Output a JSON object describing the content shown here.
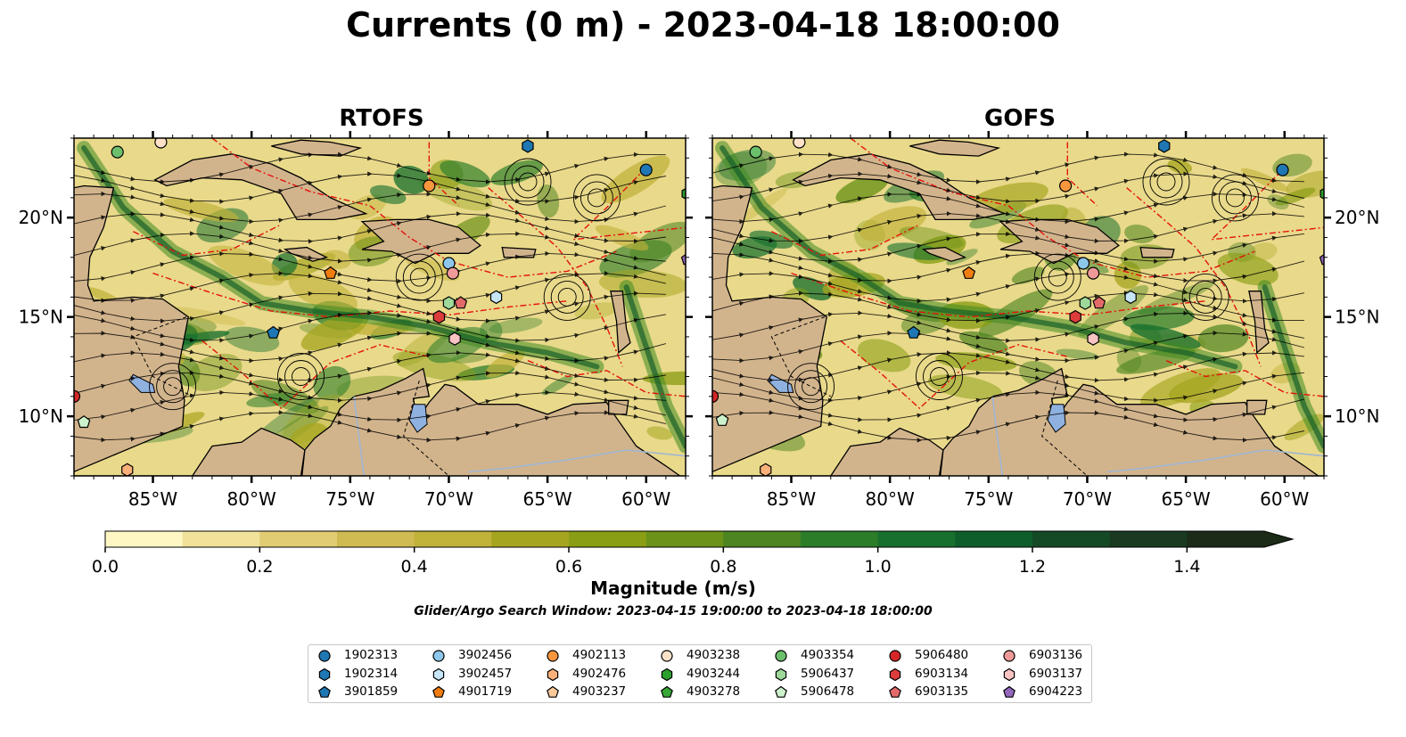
{
  "figure": {
    "title": "Currents (0 m) - 2023-04-18 18:00:00",
    "search_window": "Glider/Argo Search Window: 2023-04-15 19:00:00 to 2023-04-18 18:00:00"
  },
  "panels": [
    {
      "id": "rtofs",
      "title": "RTOFS"
    },
    {
      "id": "gofs",
      "title": "GOFS"
    }
  ],
  "axes": {
    "lon_range": [
      -89,
      -58
    ],
    "lat_range": [
      7,
      24
    ],
    "x_ticks": [
      {
        "lon": -85,
        "label": "85°W"
      },
      {
        "lon": -80,
        "label": "80°W"
      },
      {
        "lon": -75,
        "label": "75°W"
      },
      {
        "lon": -70,
        "label": "70°W"
      },
      {
        "lon": -65,
        "label": "65°W"
      },
      {
        "lon": -60,
        "label": "60°W"
      }
    ],
    "y_ticks": [
      {
        "lat": 10,
        "label": "10°N"
      },
      {
        "lat": 15,
        "label": "15°N"
      },
      {
        "lat": 20,
        "label": "20°N"
      }
    ]
  },
  "colors": {
    "land": "#d2b48c",
    "lakes": "#8fb1e0",
    "rivers": "#9fb6d4",
    "eez_lines": "#e4120f",
    "streamlines": "#000000"
  },
  "colorbar": {
    "label": "Magnitude (m/s)",
    "vmin": 0.0,
    "vmax": 1.5,
    "extend": "max",
    "ticks": [
      {
        "value": 0.0,
        "label": "0.0"
      },
      {
        "value": 0.2,
        "label": "0.2"
      },
      {
        "value": 0.4,
        "label": "0.4"
      },
      {
        "value": 0.6,
        "label": "0.6"
      },
      {
        "value": 0.8,
        "label": "0.8"
      },
      {
        "value": 1.0,
        "label": "1.0"
      },
      {
        "value": 1.2,
        "label": "1.2"
      },
      {
        "value": 1.4,
        "label": "1.4"
      }
    ],
    "levels": [
      "#fef7c3",
      "#f1e29a",
      "#e1cc73",
      "#d0bb52",
      "#c1b23a",
      "#a6a520",
      "#8a9e15",
      "#6c9219",
      "#4d8521",
      "#2b7d2a",
      "#17702e",
      "#0e5e2b",
      "#154a26",
      "#193a20",
      "#1b2b17"
    ]
  },
  "legend": {
    "items": [
      {
        "id": "1902313",
        "color": "#1f77b4",
        "marker": "circle"
      },
      {
        "id": "1902314",
        "color": "#1f77b4",
        "marker": "hexagon"
      },
      {
        "id": "3901859",
        "color": "#1f77b4",
        "marker": "pentagon"
      },
      {
        "id": "3902456",
        "color": "#8ec7ec",
        "marker": "circle"
      },
      {
        "id": "3902457",
        "color": "#c6e6f7",
        "marker": "hexagon"
      },
      {
        "id": "4901719",
        "color": "#f07d0f",
        "marker": "pentagon"
      },
      {
        "id": "4902113",
        "color": "#f8963e",
        "marker": "circle"
      },
      {
        "id": "4902476",
        "color": "#fbb07a",
        "marker": "hexagon"
      },
      {
        "id": "4903237",
        "color": "#fdc99a",
        "marker": "pentagon"
      },
      {
        "id": "4903238",
        "color": "#fde2c8",
        "marker": "circle"
      },
      {
        "id": "4903244",
        "color": "#2ca02c",
        "marker": "hexagon"
      },
      {
        "id": "4903278",
        "color": "#38a838",
        "marker": "pentagon"
      },
      {
        "id": "4903354",
        "color": "#6cc06c",
        "marker": "circle"
      },
      {
        "id": "5906437",
        "color": "#9ed99a",
        "marker": "hexagon"
      },
      {
        "id": "5906478",
        "color": "#ccf2cc",
        "marker": "pentagon"
      },
      {
        "id": "5906480",
        "color": "#d62728",
        "marker": "circle"
      },
      {
        "id": "6903134",
        "color": "#dd3c3c",
        "marker": "hexagon"
      },
      {
        "id": "6903135",
        "color": "#e46a6a",
        "marker": "pentagon"
      },
      {
        "id": "6903136",
        "color": "#ef9a9a",
        "marker": "circle"
      },
      {
        "id": "6903137",
        "color": "#f7c3c3",
        "marker": "hexagon"
      },
      {
        "id": "6904223",
        "color": "#9467bd",
        "marker": "pentagon"
      }
    ]
  },
  "floats": {
    "rtofs": [
      {
        "id": "1902313",
        "lon": -60.0,
        "lat": 22.4
      },
      {
        "id": "1902314",
        "lon": -66.0,
        "lat": 23.6
      },
      {
        "id": "3901859",
        "lon": -78.9,
        "lat": 14.2
      },
      {
        "id": "3902456",
        "lon": -70.0,
        "lat": 17.7
      },
      {
        "id": "3902457",
        "lon": -67.6,
        "lat": 16.0
      },
      {
        "id": "4901719",
        "lon": -76.0,
        "lat": 17.2
      },
      {
        "id": "4902113",
        "lon": -71.0,
        "lat": 21.6
      },
      {
        "id": "4902476",
        "lon": -86.3,
        "lat": 7.3
      },
      {
        "id": "4903238",
        "lon": -84.6,
        "lat": 23.8
      },
      {
        "id": "4903244",
        "lon": -57.9,
        "lat": 21.2
      },
      {
        "id": "4903354",
        "lon": -86.8,
        "lat": 23.3
      },
      {
        "id": "5906437",
        "lon": -70.0,
        "lat": 15.7
      },
      {
        "id": "5906478",
        "lon": -88.5,
        "lat": 9.7
      },
      {
        "id": "5906480",
        "lon": -89.0,
        "lat": 11.0
      },
      {
        "id": "6903134",
        "lon": -70.5,
        "lat": 15.0
      },
      {
        "id": "6903135",
        "lon": -69.4,
        "lat": 15.7
      },
      {
        "id": "6903136",
        "lon": -69.8,
        "lat": 17.2
      },
      {
        "id": "6903137",
        "lon": -69.7,
        "lat": 13.9
      },
      {
        "id": "6904223",
        "lon": -57.9,
        "lat": 17.9
      }
    ],
    "gofs": [
      {
        "id": "1902313",
        "lon": -60.1,
        "lat": 22.4
      },
      {
        "id": "1902314",
        "lon": -66.1,
        "lat": 23.6
      },
      {
        "id": "3901859",
        "lon": -78.8,
        "lat": 14.2
      },
      {
        "id": "3902456",
        "lon": -70.2,
        "lat": 17.7
      },
      {
        "id": "3902457",
        "lon": -67.8,
        "lat": 16.0
      },
      {
        "id": "4901719",
        "lon": -76.0,
        "lat": 17.2
      },
      {
        "id": "4902113",
        "lon": -71.1,
        "lat": 21.6
      },
      {
        "id": "4902476",
        "lon": -86.3,
        "lat": 7.3
      },
      {
        "id": "4903238",
        "lon": -84.6,
        "lat": 23.8
      },
      {
        "id": "4903244",
        "lon": -57.9,
        "lat": 21.2
      },
      {
        "id": "4903354",
        "lon": -86.8,
        "lat": 23.3
      },
      {
        "id": "5906437",
        "lon": -70.1,
        "lat": 15.7
      },
      {
        "id": "5906478",
        "lon": -88.5,
        "lat": 9.8
      },
      {
        "id": "5906480",
        "lon": -89.0,
        "lat": 11.0
      },
      {
        "id": "6903134",
        "lon": -70.6,
        "lat": 15.0
      },
      {
        "id": "6903135",
        "lon": -69.4,
        "lat": 15.7
      },
      {
        "id": "6903136",
        "lon": -69.7,
        "lat": 17.2
      },
      {
        "id": "6903137",
        "lon": -69.7,
        "lat": 13.9
      },
      {
        "id": "6904223",
        "lon": -57.9,
        "lat": 17.9
      }
    ]
  }
}
